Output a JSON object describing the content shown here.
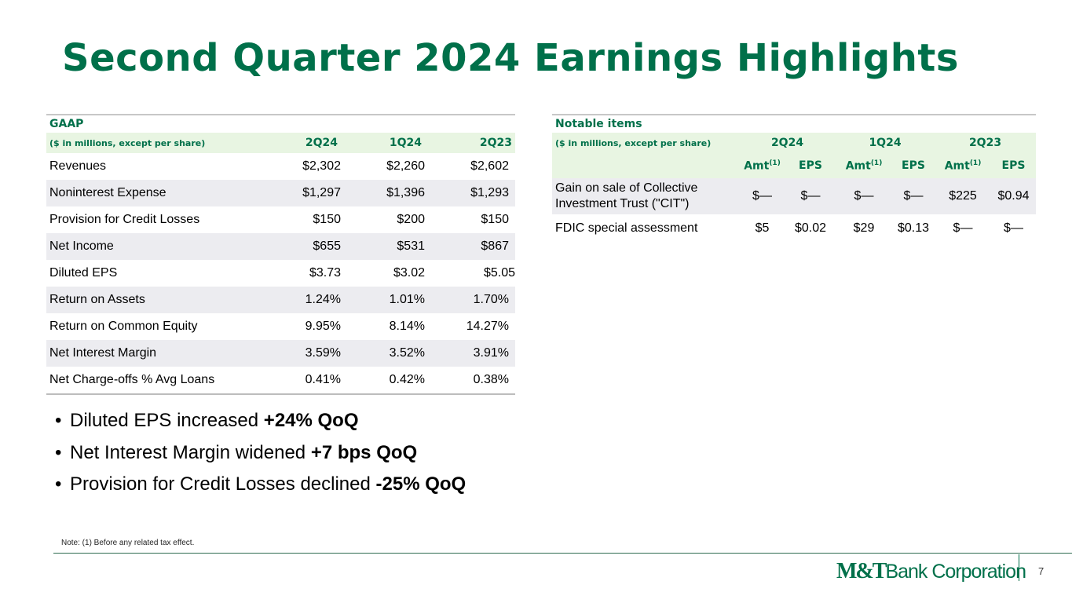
{
  "title": "Second Quarter 2024 Earnings Highlights",
  "gaap": {
    "heading": "GAAP",
    "unit_label": "($ in millions, except per share)",
    "columns": [
      "2Q24",
      "1Q24",
      "2Q23"
    ],
    "rows": [
      {
        "label": "Revenues",
        "values": [
          "$2,302",
          "$2,260",
          "$2,602"
        ]
      },
      {
        "label": "Noninterest Expense",
        "values": [
          "$1,297",
          "$1,396",
          "$1,293"
        ]
      },
      {
        "label": "Provision for Credit Losses",
        "values": [
          "$150",
          "$200",
          "$150"
        ]
      },
      {
        "label": "Net Income",
        "values": [
          "$655",
          "$531",
          "$867"
        ]
      },
      {
        "label": "Diluted EPS",
        "values": [
          "$3.73",
          "$3.02",
          "$5.05"
        ]
      },
      {
        "label": "Return on Assets",
        "values": [
          "1.24%",
          "1.01%",
          "1.70%"
        ]
      },
      {
        "label": "Return on Common Equity",
        "values": [
          "9.95%",
          "8.14%",
          "14.27%"
        ]
      },
      {
        "label": "Net Interest Margin",
        "values": [
          "3.59%",
          "3.52%",
          "3.91%"
        ]
      },
      {
        "label": "Net Charge-offs % Avg Loans",
        "values": [
          "0.41%",
          "0.42%",
          "0.38%"
        ]
      }
    ]
  },
  "notable": {
    "heading": "Notable items",
    "unit_label": "($ in millions, except per share)",
    "columns": [
      "2Q24",
      "1Q24",
      "2Q23"
    ],
    "sub_amt": "Amt",
    "sub_amt_sup": "(1)",
    "sub_eps": "EPS",
    "rows": [
      {
        "label_line1": "Gain on sale of Collective",
        "label_line2": "Investment Trust (\"CIT\")",
        "values": [
          "$—",
          "$—",
          "$—",
          "$—",
          "$225",
          "$0.94"
        ]
      },
      {
        "label": "FDIC special assessment",
        "values": [
          "$5",
          "$0.02",
          "$29",
          "$0.13",
          "$—",
          "$—"
        ]
      }
    ]
  },
  "bullets": [
    {
      "text": "Diluted EPS increased ",
      "bold": "+24% QoQ"
    },
    {
      "text": "Net Interest Margin widened ",
      "bold": "+7 bps QoQ"
    },
    {
      "text": "Provision for Credit Losses declined ",
      "bold": "-25% QoQ"
    }
  ],
  "footnote": "Note: (1) Before any related tax effect.",
  "logo": {
    "mark": "M&T",
    "name": "Bank Corporation"
  },
  "page_number": "7",
  "colors": {
    "brand_green": "#00704a",
    "header_tint": "#e8f5e2",
    "row_shade": "#ececf0"
  }
}
